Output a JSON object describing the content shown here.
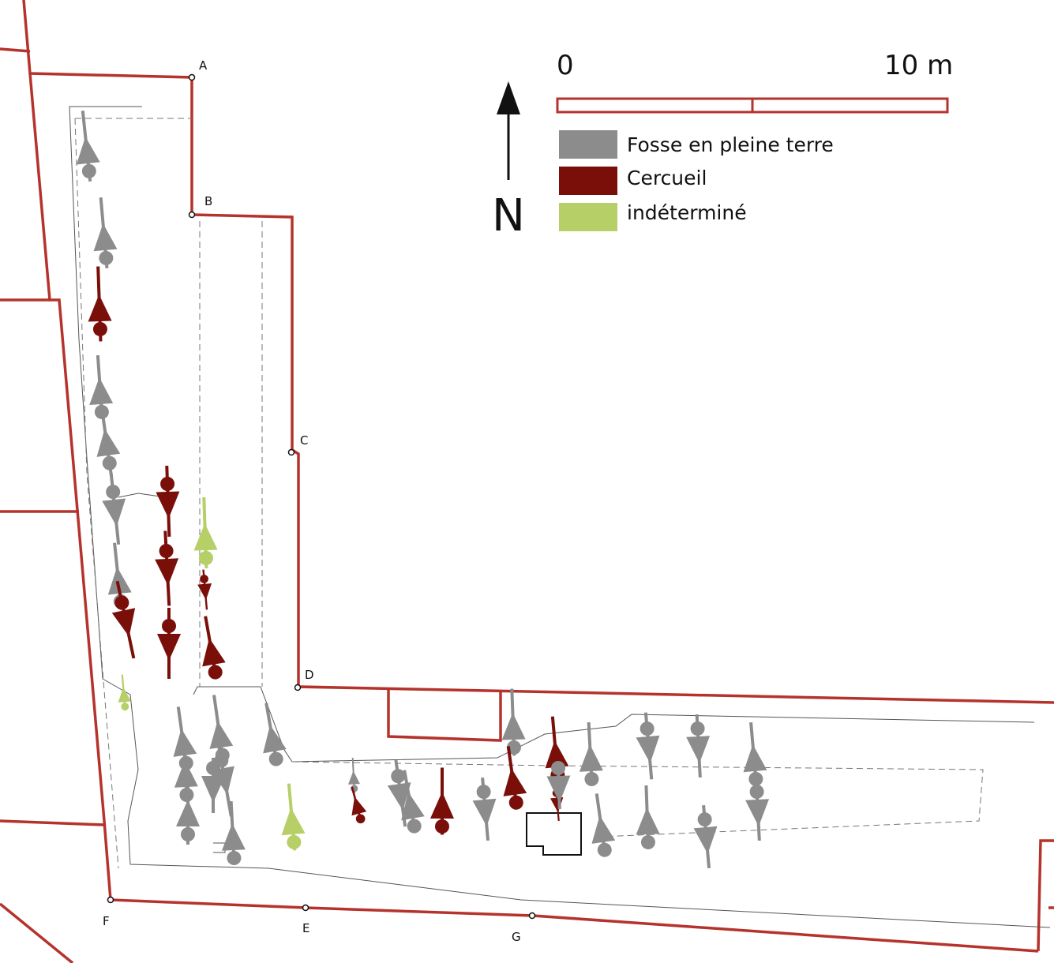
{
  "points": [
    {
      "label": "A"
    },
    {
      "label": "B"
    },
    {
      "label": "C"
    },
    {
      "label": "D"
    },
    {
      "label": "E"
    },
    {
      "label": "F"
    },
    {
      "label": "G"
    }
  ],
  "scale_bar": {
    "start_label": "0",
    "end_label": "10 m"
  },
  "north": {
    "label": "N"
  },
  "legend": [
    {
      "label": "Fosse en pleine terre",
      "color": "#8c8c8c"
    },
    {
      "label": "Cercueil",
      "color": "#7a0f0a"
    },
    {
      "label": "indéterminé",
      "color": "#b6cf66"
    }
  ],
  "colors": {
    "parcel_line": "#b5332c",
    "excavation_line": "#555555"
  },
  "burials": [
    {
      "type": "Fosse en pleine terre",
      "head": "south"
    },
    {
      "type": "Fosse en pleine terre",
      "head": "south"
    },
    {
      "type": "Cercueil",
      "head": "south"
    },
    {
      "type": "Fosse en pleine terre",
      "head": "south"
    },
    {
      "type": "Fosse en pleine terre",
      "head": "south"
    },
    {
      "type": "Fosse en pleine terre",
      "head": "north"
    },
    {
      "type": "Fosse en pleine terre",
      "head": "south"
    },
    {
      "type": "Cercueil",
      "head": "north"
    },
    {
      "type": "Cercueil",
      "head": "north"
    },
    {
      "type": "Cercueil",
      "head": "north"
    },
    {
      "type": "indéterminé",
      "head": "south"
    },
    {
      "type": "Cercueil",
      "head": "north"
    },
    {
      "type": "Cercueil",
      "head": "south"
    },
    {
      "type": "Cercueil",
      "head": "north"
    },
    {
      "type": "indéterminé",
      "head": "south"
    },
    {
      "type": "Fosse en pleine terre",
      "head": "south"
    },
    {
      "type": "Fosse en pleine terre",
      "head": "south"
    },
    {
      "type": "Fosse en pleine terre",
      "head": "south"
    },
    {
      "type": "Fosse en pleine terre",
      "head": "south"
    },
    {
      "type": "Fosse en pleine terre",
      "head": "north"
    },
    {
      "type": "Fosse en pleine terre",
      "head": "south"
    },
    {
      "type": "Fosse en pleine terre",
      "head": "south"
    },
    {
      "type": "indéterminé",
      "head": "south"
    },
    {
      "type": "Fosse en pleine terre",
      "head": "south"
    },
    {
      "type": "Cercueil",
      "head": "south"
    },
    {
      "type": "Fosse en pleine terre",
      "head": "north"
    },
    {
      "type": "Fosse en pleine terre",
      "head": "south"
    },
    {
      "type": "Cercueil",
      "head": "south"
    },
    {
      "type": "Fosse en pleine terre",
      "head": "north"
    },
    {
      "type": "Fosse en pleine terre",
      "head": "south"
    },
    {
      "type": "Cercueil",
      "head": "south"
    },
    {
      "type": "Cercueil",
      "head": "north"
    },
    {
      "type": "Cercueil",
      "head": "south"
    },
    {
      "type": "Fosse en pleine terre",
      "head": "south"
    },
    {
      "type": "Fosse en pleine terre",
      "head": "south"
    },
    {
      "type": "Fosse en pleine terre",
      "head": "north"
    },
    {
      "type": "Fosse en pleine terre",
      "head": "south"
    },
    {
      "type": "Fosse en pleine terre",
      "head": "north"
    },
    {
      "type": "Fosse en pleine terre",
      "head": "north"
    },
    {
      "type": "Fosse en pleine terre",
      "head": "south"
    },
    {
      "type": "Fosse en pleine terre",
      "head": "north"
    },
    {
      "type": "Fosse en pleine terre",
      "head": "north"
    },
    {
      "type": "Fosse en pleine terre",
      "head": "north"
    }
  ]
}
